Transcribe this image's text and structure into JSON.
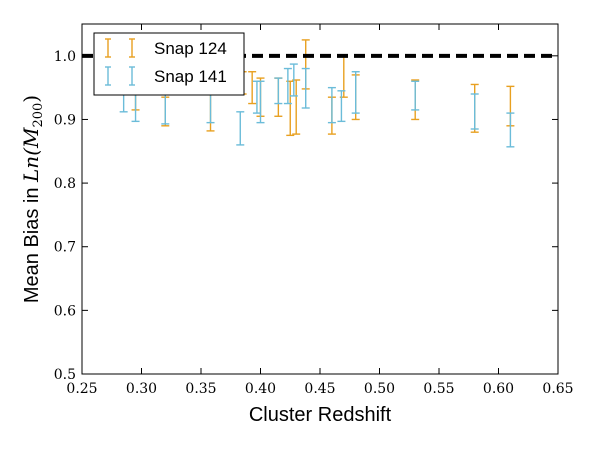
{
  "chart_data": {
    "type": "scatter",
    "title": "",
    "xlabel": "Cluster Redshift",
    "ylabel_prefix": "Mean Bias in ",
    "ylabel_math": "Ln(M",
    "ylabel_sub": "200",
    "ylabel_close": ")",
    "xlim": [
      0.25,
      0.65
    ],
    "ylim": [
      0.5,
      1.05
    ],
    "xticks": [
      "0.25",
      "0.30",
      "0.35",
      "0.40",
      "0.45",
      "0.50",
      "0.55",
      "0.60",
      "0.65"
    ],
    "yticks": [
      "0.5",
      "0.6",
      "0.7",
      "0.8",
      "0.9",
      "1.0"
    ],
    "reference_line": {
      "y": 1.0,
      "style": "dashed",
      "color": "#000000"
    },
    "grid": false,
    "legend_position": "top-left",
    "series": [
      {
        "name": "Snap 124",
        "color": "#e8a020",
        "marker": "errorbar",
        "points": [
          {
            "x": 0.295,
            "low": 0.915,
            "high": 0.955
          },
          {
            "x": 0.32,
            "low": 0.89,
            "high": 0.935
          },
          {
            "x": 0.358,
            "low": 0.882,
            "high": 0.94
          },
          {
            "x": 0.385,
            "low": 0.94,
            "high": 0.975
          },
          {
            "x": 0.393,
            "low": 0.925,
            "high": 0.975
          },
          {
            "x": 0.4,
            "low": 0.905,
            "high": 0.965
          },
          {
            "x": 0.415,
            "low": 0.905,
            "high": 0.965
          },
          {
            "x": 0.425,
            "low": 0.875,
            "high": 0.96
          },
          {
            "x": 0.43,
            "low": 0.877,
            "high": 0.962
          },
          {
            "x": 0.438,
            "low": 0.948,
            "high": 1.025
          },
          {
            "x": 0.46,
            "low": 0.877,
            "high": 0.935
          },
          {
            "x": 0.47,
            "low": 0.935,
            "high": 1.0
          },
          {
            "x": 0.48,
            "low": 0.9,
            "high": 0.97
          },
          {
            "x": 0.53,
            "low": 0.9,
            "high": 0.962
          },
          {
            "x": 0.58,
            "low": 0.88,
            "high": 0.955
          },
          {
            "x": 0.61,
            "low": 0.89,
            "high": 0.952
          }
        ]
      },
      {
        "name": "Snap 141",
        "color": "#6bbcd9",
        "marker": "errorbar",
        "points": [
          {
            "x": 0.285,
            "low": 0.912,
            "high": 0.95
          },
          {
            "x": 0.295,
            "low": 0.897,
            "high": 0.94
          },
          {
            "x": 0.32,
            "low": 0.893,
            "high": 0.945
          },
          {
            "x": 0.358,
            "low": 0.895,
            "high": 0.95
          },
          {
            "x": 0.383,
            "low": 0.86,
            "high": 0.912
          },
          {
            "x": 0.397,
            "low": 0.91,
            "high": 0.96
          },
          {
            "x": 0.4,
            "low": 0.895,
            "high": 0.96
          },
          {
            "x": 0.415,
            "low": 0.925,
            "high": 0.965
          },
          {
            "x": 0.423,
            "low": 0.925,
            "high": 0.98
          },
          {
            "x": 0.428,
            "low": 0.937,
            "high": 0.987
          },
          {
            "x": 0.438,
            "low": 0.918,
            "high": 0.98
          },
          {
            "x": 0.46,
            "low": 0.895,
            "high": 0.95
          },
          {
            "x": 0.468,
            "low": 0.897,
            "high": 0.945
          },
          {
            "x": 0.48,
            "low": 0.91,
            "high": 0.975
          },
          {
            "x": 0.53,
            "low": 0.915,
            "high": 0.96
          },
          {
            "x": 0.58,
            "low": 0.885,
            "high": 0.94
          },
          {
            "x": 0.61,
            "low": 0.857,
            "high": 0.91
          }
        ]
      }
    ]
  }
}
